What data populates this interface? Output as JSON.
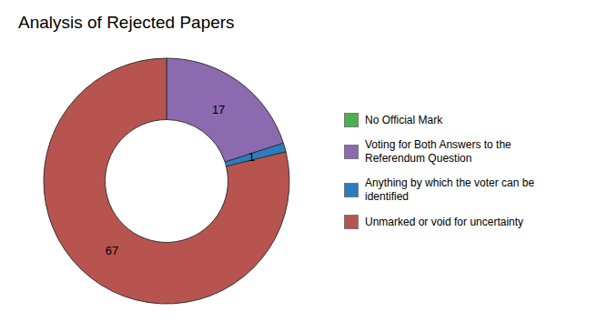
{
  "chart_data": {
    "type": "pie",
    "title": "Analysis of Rejected Papers",
    "categories": [
      "No Official Mark",
      "Voting for Both Answers to the\nReferendum Question",
      "Anything by which the voter can be\nidentified",
      "Unmarked or void for uncertainty"
    ],
    "values": [
      0.001,
      17,
      1,
      67
    ],
    "colors": [
      "#4CAF50",
      "#8B6AAF",
      "#2A7DC0",
      "#B85450"
    ],
    "data_labels": true,
    "value_labels": [
      null,
      "17",
      "1",
      "67"
    ],
    "legend": "right"
  }
}
